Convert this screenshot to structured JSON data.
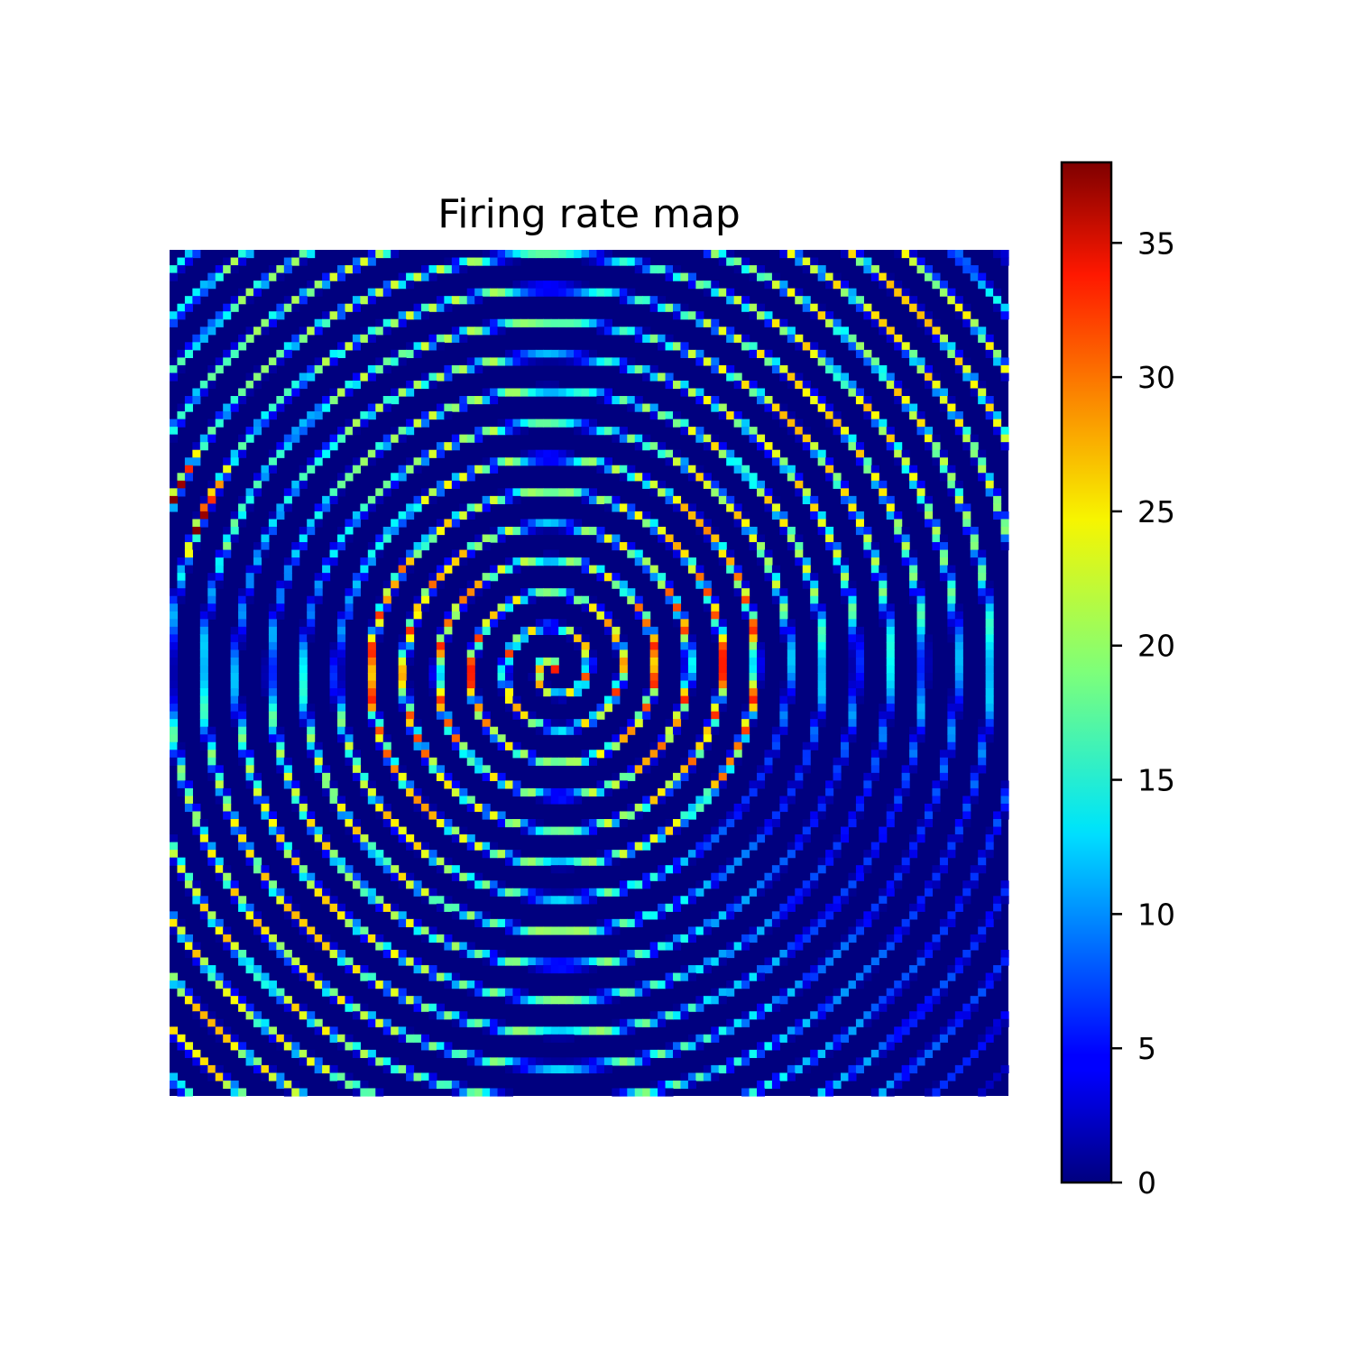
{
  "chart_data": {
    "type": "heatmap",
    "title": "Firing rate map",
    "xlabel": "",
    "ylabel": "",
    "axes_visible": false,
    "colormap": "jet",
    "grid": {
      "rows": 110,
      "cols": 110,
      "description_of_values": "firing rate per spatial bin"
    },
    "colorbar": {
      "min": 0,
      "max": 38,
      "ticks": [
        0,
        5,
        10,
        15,
        20,
        25,
        30,
        35
      ],
      "tick_labels": [
        "0",
        "5",
        "10",
        "15",
        "20",
        "25",
        "30",
        "35"
      ],
      "position": "right"
    },
    "features": {
      "peak_rate": 38,
      "peak_location": "left edge, upper-middle",
      "center_spiral_rate": 20,
      "right_ring_peak": 31
    }
  }
}
